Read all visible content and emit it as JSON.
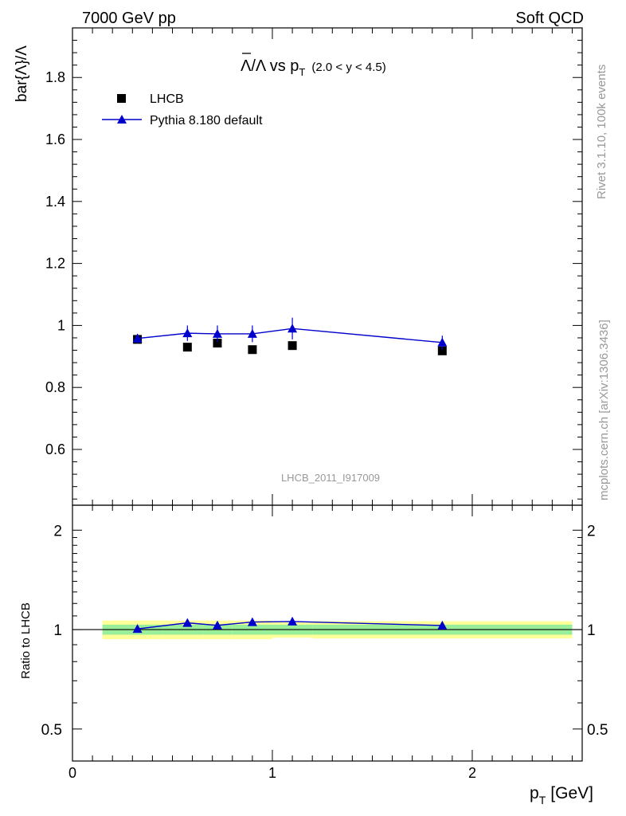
{
  "header": {
    "left": "7000 GeV pp",
    "right": "Soft QCD"
  },
  "side_labels": {
    "rivet": "Rivet 3.1.10,  100k events",
    "source": "mcplots.cern.ch [arXiv:1306.3436]"
  },
  "watermark": "LHCB_2011_I917009",
  "chart_data": {
    "type": "scatter",
    "title": {
      "observable": "Λ/Λ vs p",
      "subscript": "T",
      "range": "(2.0 < y < 4.5)"
    },
    "main": {
      "ylabel": "bar{Λ}/Λ",
      "xlim": [
        0,
        2.55
      ],
      "ylim": [
        0.42,
        1.96
      ],
      "yticks": [
        0.6,
        0.8,
        1.0,
        1.2,
        1.4,
        1.6,
        1.8
      ],
      "ytick_labels": [
        "0.6",
        "0.8",
        "1",
        "1.2",
        "1.4",
        "1.6",
        "1.8"
      ]
    },
    "ratio": {
      "ylabel": "Ratio to LHCB",
      "yscale": "log",
      "ylim": [
        0.4,
        2.38
      ],
      "yticks": [
        0.5,
        1,
        2
      ],
      "ytick_labels": [
        "0.5",
        "1",
        "2"
      ]
    },
    "x": {
      "label": "p",
      "label_sub": "T",
      "label_unit": "[GeV]",
      "ticks": [
        0,
        1,
        2
      ],
      "tick_labels": [
        "0",
        "1",
        "2"
      ]
    },
    "legend": {
      "position": "top-left",
      "entries": [
        "LHCB",
        "Pythia 8.180 default"
      ]
    },
    "series": [
      {
        "name": "LHCB",
        "marker": "square",
        "color": "#000000",
        "x": [
          0.325,
          0.575,
          0.725,
          0.9,
          1.1,
          1.85
        ],
        "y": [
          0.955,
          0.93,
          0.943,
          0.922,
          0.935,
          0.918
        ],
        "err": [
          0.006,
          0.006,
          0.006,
          0.006,
          0.006,
          0.006
        ],
        "band_edges": [
          0.15,
          0.45,
          0.65,
          0.8,
          1.0,
          1.2,
          2.5
        ],
        "band_inner": [
          0.035,
          0.035,
          0.035,
          0.035,
          0.035,
          0.035
        ],
        "band_outer": [
          0.065,
          0.065,
          0.065,
          0.065,
          0.055,
          0.06
        ]
      },
      {
        "name": "Pythia 8.180 default",
        "marker": "triangle",
        "color": "#0000cc",
        "x": [
          0.325,
          0.575,
          0.725,
          0.9,
          1.1,
          1.85
        ],
        "y": [
          0.958,
          0.975,
          0.973,
          0.973,
          0.99,
          0.945
        ],
        "err": [
          0.015,
          0.025,
          0.027,
          0.027,
          0.035,
          0.022
        ],
        "ratio": [
          1.005,
          1.048,
          1.03,
          1.054,
          1.058,
          1.029
        ],
        "ratio_err": [
          0.012,
          0.022,
          0.024,
          0.025,
          0.028,
          0.015
        ]
      }
    ]
  }
}
